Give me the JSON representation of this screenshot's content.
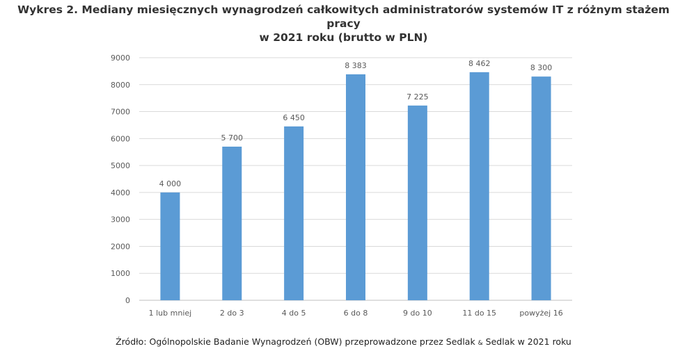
{
  "title_line1": "Wykres 2. Mediany miesięcznych wynagrodzeń całkowitych administratorów systemów IT z różnym stażem pracy",
  "title_line2": "w 2021 roku (brutto w PLN)",
  "source_text_part1": "Źródło: Ogólnopolskie Badanie Wynagrodzeń (OBW) przeprowadzone przez Sedlak ",
  "source_text_amp": "&",
  "source_text_part2": " Sedlak w 2021 roku",
  "colors": {
    "bar": "#5B9BD5",
    "grid": "#D9D9D9",
    "text": "#595959"
  },
  "chart_data": {
    "type": "bar",
    "title": "Wykres 2. Mediany miesięcznych wynagrodzeń całkowitych administratorów systemów IT z różnym stażem pracy w 2021 roku (brutto w PLN)",
    "xlabel": "",
    "ylabel": "",
    "categories": [
      "1 lub mniej",
      "2 do 3",
      "4 do 5",
      "6 do 8",
      "9 do 10",
      "11 do 15",
      "powyżej 16"
    ],
    "values": [
      4000,
      5700,
      6450,
      8383,
      7225,
      8462,
      8300
    ],
    "value_labels": [
      "4 000",
      "5 700",
      "6 450",
      "8 383",
      "7 225",
      "8 462",
      "8 300"
    ],
    "ylim": [
      0,
      9000
    ],
    "yticks": [
      0,
      1000,
      2000,
      3000,
      4000,
      5000,
      6000,
      7000,
      8000,
      9000
    ],
    "grid": true,
    "legend": "none"
  }
}
